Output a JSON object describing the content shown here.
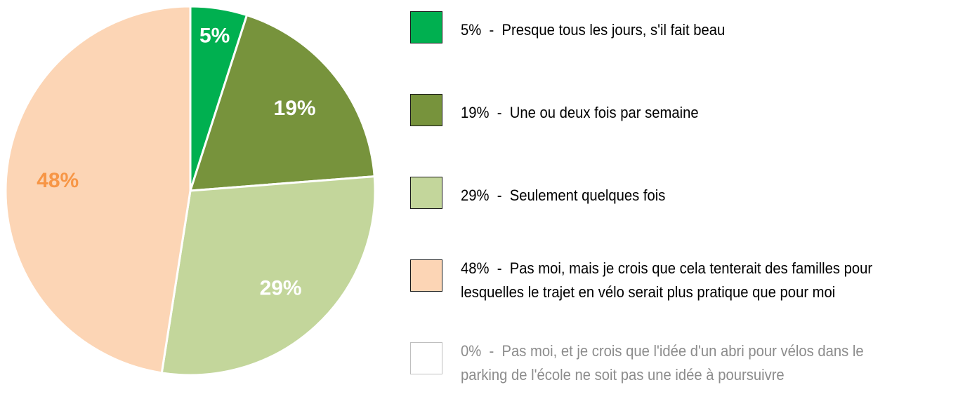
{
  "chart_data": {
    "type": "pie",
    "slices": [
      {
        "label": "5%",
        "value": 5,
        "color": "#00b050",
        "label_color": "#ffffff",
        "legend": "5%  -  Presque tous les jours, s'il fait beau"
      },
      {
        "label": "19%",
        "value": 19,
        "color": "#77933c",
        "label_color": "#ffffff",
        "legend": "19%  -  Une ou deux fois par semaine"
      },
      {
        "label": "29%",
        "value": 29,
        "color": "#c3d69b",
        "label_color": "#ffffff",
        "legend": "29%  -  Seulement quelques fois"
      },
      {
        "label": "48%",
        "value": 48,
        "color": "#fcd5b5",
        "label_color": "#f79646",
        "legend": "48%  -  Pas moi, mais je crois que cela tenterait des familles pour lesquelles le trajet en vélo serait plus pratique que pour moi"
      },
      {
        "label": "0%",
        "value": 0,
        "color": "#ffffff",
        "label_color": "#ffffff",
        "legend": "0%  -  Pas moi, et je crois que l'idée d'un abri pour vélos dans le parking de l'école ne soit pas une idée à poursuivre"
      }
    ],
    "legend_placement": "right",
    "slice_border_color": "#ffffff"
  }
}
